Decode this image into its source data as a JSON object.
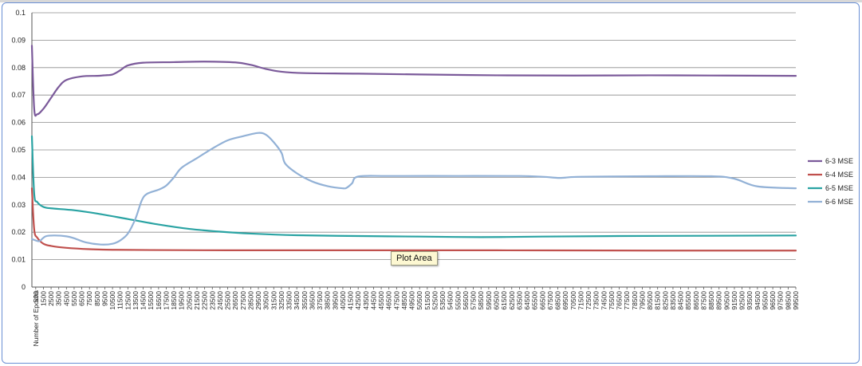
{
  "chart_data": {
    "type": "line",
    "title": "",
    "xlabel": "Number of Epochs",
    "ylabel": "",
    "ylim": [
      0,
      0.1
    ],
    "y_ticks": [
      "0",
      "0.01",
      "0.02",
      "0.03",
      "0.04",
      "0.05",
      "0.06",
      "0.07",
      "0.08",
      "0.09",
      "0.1"
    ],
    "x_tick_values": [
      500,
      1500,
      2500,
      3500,
      4500,
      5500,
      6500,
      7500,
      8500,
      9500,
      10500,
      11500,
      12500,
      13500,
      14500,
      15500,
      16500,
      17500,
      18500,
      19500,
      20500,
      21500,
      22500,
      23500,
      24500,
      25500,
      26500,
      27500,
      28500,
      29500,
      30500,
      31500,
      32500,
      33500,
      34500,
      35500,
      36500,
      37500,
      38500,
      39500,
      40500,
      41500,
      42500,
      43500,
      44500,
      45500,
      46500,
      47500,
      48500,
      49500,
      50500,
      51500,
      52500,
      53500,
      54500,
      55500,
      56500,
      57500,
      58500,
      59500,
      60500,
      61500,
      62500,
      63500,
      64500,
      65500,
      66500,
      67500,
      68500,
      69500,
      70500,
      71500,
      72500,
      73500,
      74500,
      75500,
      76500,
      77500,
      78500,
      79500,
      80500,
      81500,
      82500,
      83500,
      84500,
      85500,
      86500,
      87500,
      88500,
      89500,
      90500,
      91500,
      92500,
      93500,
      94500,
      95500,
      96500,
      97500,
      98500,
      99500
    ],
    "grid": true,
    "legend_position": "right",
    "series": [
      {
        "name": "6-3 MSE",
        "color": "#7b5a9a",
        "points": [
          [
            0,
            0.088
          ],
          [
            300,
            0.065
          ],
          [
            700,
            0.063
          ],
          [
            1500,
            0.065
          ],
          [
            2500,
            0.069
          ],
          [
            3500,
            0.073
          ],
          [
            4500,
            0.0755
          ],
          [
            6500,
            0.0768
          ],
          [
            8500,
            0.077
          ],
          [
            9500,
            0.0772
          ],
          [
            10500,
            0.0775
          ],
          [
            11500,
            0.079
          ],
          [
            12500,
            0.0808
          ],
          [
            14500,
            0.0818
          ],
          [
            18500,
            0.082
          ],
          [
            22500,
            0.0822
          ],
          [
            26500,
            0.0819
          ],
          [
            28500,
            0.081
          ],
          [
            30500,
            0.0795
          ],
          [
            32500,
            0.0785
          ],
          [
            35500,
            0.078
          ],
          [
            42500,
            0.0778
          ],
          [
            50500,
            0.0775
          ],
          [
            60500,
            0.0772
          ],
          [
            70500,
            0.0771
          ],
          [
            80500,
            0.0772
          ],
          [
            90500,
            0.0771
          ],
          [
            99500,
            0.077
          ]
        ]
      },
      {
        "name": "6-4 MSE",
        "color": "#c0504d",
        "points": [
          [
            0,
            0.036
          ],
          [
            300,
            0.021
          ],
          [
            700,
            0.018
          ],
          [
            1500,
            0.0158
          ],
          [
            2500,
            0.015
          ],
          [
            4500,
            0.0143
          ],
          [
            7500,
            0.0138
          ],
          [
            10500,
            0.0136
          ],
          [
            15500,
            0.0135
          ],
          [
            25500,
            0.0134
          ],
          [
            40500,
            0.0134
          ],
          [
            60500,
            0.0134
          ],
          [
            80500,
            0.0133
          ],
          [
            99500,
            0.0133
          ]
        ]
      },
      {
        "name": "6-5 MSE",
        "color": "#2aa3a3",
        "points": [
          [
            0,
            0.055
          ],
          [
            300,
            0.034
          ],
          [
            700,
            0.031
          ],
          [
            1500,
            0.0292
          ],
          [
            2500,
            0.0287
          ],
          [
            5500,
            0.028
          ],
          [
            8500,
            0.0268
          ],
          [
            12500,
            0.0248
          ],
          [
            16500,
            0.0228
          ],
          [
            20500,
            0.0212
          ],
          [
            24500,
            0.0202
          ],
          [
            28500,
            0.0195
          ],
          [
            34500,
            0.0189
          ],
          [
            42500,
            0.0186
          ],
          [
            50500,
            0.0184
          ],
          [
            58500,
            0.0182
          ],
          [
            66500,
            0.0184
          ],
          [
            76500,
            0.0186
          ],
          [
            88500,
            0.0187
          ],
          [
            99500,
            0.0188
          ]
        ]
      },
      {
        "name": "6-6 MSE",
        "color": "#92b1d6",
        "points": [
          [
            0,
            0.0175
          ],
          [
            500,
            0.017
          ],
          [
            1000,
            0.0168
          ],
          [
            1800,
            0.0185
          ],
          [
            3000,
            0.0188
          ],
          [
            4500,
            0.0185
          ],
          [
            5500,
            0.0178
          ],
          [
            7000,
            0.0163
          ],
          [
            9000,
            0.0155
          ],
          [
            10500,
            0.0158
          ],
          [
            11500,
            0.017
          ],
          [
            12500,
            0.0195
          ],
          [
            13500,
            0.025
          ],
          [
            14300,
            0.0315
          ],
          [
            15000,
            0.034
          ],
          [
            16500,
            0.0355
          ],
          [
            17500,
            0.037
          ],
          [
            18500,
            0.04
          ],
          [
            19500,
            0.0435
          ],
          [
            21500,
            0.047
          ],
          [
            23500,
            0.0505
          ],
          [
            25500,
            0.0535
          ],
          [
            27500,
            0.055
          ],
          [
            29500,
            0.0562
          ],
          [
            30500,
            0.0555
          ],
          [
            31500,
            0.0528
          ],
          [
            32500,
            0.049
          ],
          [
            33000,
            0.045
          ],
          [
            34500,
            0.0415
          ],
          [
            36500,
            0.0385
          ],
          [
            38500,
            0.0368
          ],
          [
            40500,
            0.036
          ],
          [
            41000,
            0.0362
          ],
          [
            41700,
            0.0378
          ],
          [
            42500,
            0.0403
          ],
          [
            46500,
            0.0405
          ],
          [
            55500,
            0.0405
          ],
          [
            63500,
            0.0405
          ],
          [
            66500,
            0.0402
          ],
          [
            68500,
            0.0398
          ],
          [
            69500,
            0.0399
          ],
          [
            71500,
            0.0402
          ],
          [
            80500,
            0.0404
          ],
          [
            88500,
            0.0404
          ],
          [
            91500,
            0.0395
          ],
          [
            94500,
            0.0367
          ],
          [
            99500,
            0.036
          ]
        ]
      }
    ]
  },
  "tooltip": {
    "text": "Plot Area"
  }
}
